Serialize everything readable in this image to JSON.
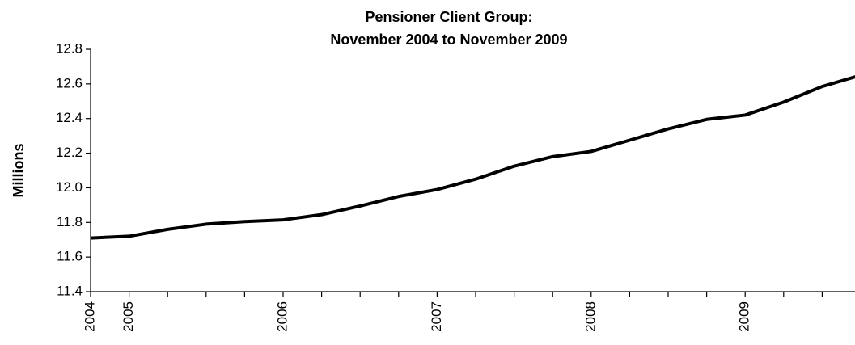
{
  "chart_data": {
    "type": "line",
    "title": "Pensioner Client Group:",
    "subtitle": "November 2004 to November 2009",
    "ylabel": "Millions",
    "categories": [
      "2004",
      "2005",
      null,
      null,
      null,
      "2006",
      null,
      null,
      null,
      "2007",
      null,
      null,
      null,
      "2008",
      null,
      null,
      null,
      "2009",
      null,
      null,
      null
    ],
    "series": [
      {
        "name": "Pensioner Client Group",
        "color": "#000000",
        "values": [
          11.71,
          11.72,
          11.76,
          11.79,
          11.805,
          11.815,
          11.845,
          11.895,
          11.95,
          11.99,
          12.05,
          12.125,
          12.18,
          12.21,
          12.275,
          12.34,
          12.395,
          12.42,
          12.495,
          12.585,
          12.65
        ]
      }
    ],
    "ylim": [
      11.4,
      12.8
    ],
    "yticks": [
      11.4,
      11.6,
      11.8,
      {
        "value": 12,
        "label": "12.0"
      },
      12.2,
      12.4,
      12.6,
      12.8
    ],
    "grid": false
  }
}
